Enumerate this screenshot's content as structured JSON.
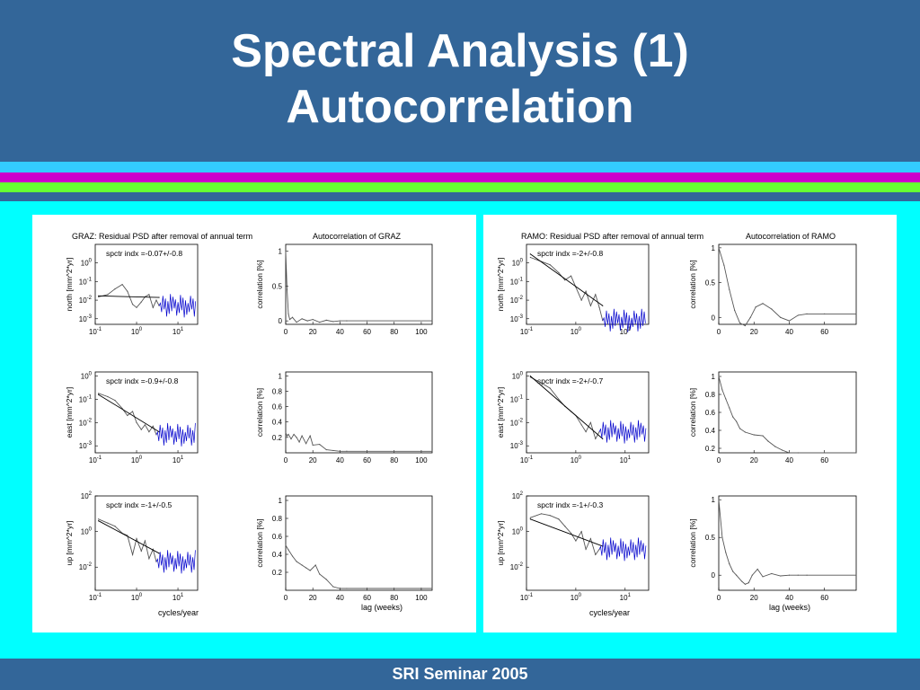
{
  "slide": {
    "title_line1": "Spectral Analysis (1)",
    "title_line2": "Autocorrelation",
    "footer": "SRI Seminar 2005",
    "colors": {
      "header": "#336699",
      "background": "#00ffff",
      "stripe_cyan": "#33ccff",
      "stripe_magenta": "#cc00cc",
      "stripe_green": "#66ff33",
      "stripe_blue": "#336699",
      "psd_noise": "#0000cc"
    }
  },
  "panels": [
    {
      "station": "GRAZ",
      "psd_title": "GRAZ:  Residual PSD after removal of annual term",
      "acf_title": "Autocorrelation of GRAZ",
      "psd_xlabel": "cycles/year",
      "acf_xlabel": "lag (weeks)"
    },
    {
      "station": "RAMO",
      "psd_title": "RAMO:  Residual PSD after removal of annual term",
      "acf_title": "Autocorrelation of RAMO",
      "psd_xlabel": "cycles/year",
      "acf_xlabel": "lag (weeks)"
    }
  ],
  "chart_data": [
    {
      "type": "line",
      "station": "GRAZ",
      "component": "north",
      "title": "GRAZ:  Residual PSD after removal of annual term",
      "ylabel": "north [mm^2*yr]",
      "xlabel": "",
      "annotation": "spctr indx =-0.07+/-0.8",
      "xscale": "log",
      "yscale": "log",
      "xlim": [
        0.1,
        30
      ],
      "ylim": [
        0.0005,
        10
      ],
      "xticks": [
        0.1,
        1,
        10
      ],
      "yticks": [
        0.001,
        0.01,
        0.1,
        1
      ],
      "series": [
        {
          "style": "psd",
          "x": [
            0.12,
            0.2,
            0.3,
            0.45,
            0.6,
            0.8,
            1,
            1.3,
            1.6,
            2,
            2.5,
            3,
            3.5
          ],
          "y": [
            0.015,
            0.02,
            0.04,
            0.07,
            0.03,
            0.006,
            0.004,
            0.008,
            0.015,
            0.02,
            0.004,
            0.01,
            0.005
          ]
        },
        {
          "style": "fit",
          "x": [
            0.12,
            3.5
          ],
          "y": [
            0.017,
            0.014
          ]
        }
      ]
    },
    {
      "type": "line",
      "station": "GRAZ",
      "component": "north",
      "title": "Autocorrelation of GRAZ",
      "ylabel": "correlation [%]",
      "xlabel": "",
      "xlim": [
        0,
        108
      ],
      "ylim": [
        -0.05,
        1.1
      ],
      "xticks": [
        0,
        20,
        40,
        60,
        80,
        100
      ],
      "yticks": [
        0,
        0.5,
        1
      ],
      "series": [
        {
          "x": [
            0,
            1,
            2,
            3,
            5,
            8,
            12,
            16,
            20,
            25,
            30,
            35,
            40,
            45,
            60,
            108
          ],
          "y": [
            1,
            0.45,
            0.1,
            0.02,
            0.05,
            -0.02,
            0.03,
            0.0,
            0.02,
            -0.02,
            0.01,
            -0.01,
            0.0,
            0.0,
            0.0,
            0.0
          ]
        }
      ]
    },
    {
      "type": "line",
      "station": "GRAZ",
      "component": "east",
      "title": "",
      "ylabel": "east [mm^2*yr]",
      "xlabel": "",
      "annotation": "spctr indx =-0.9+/-0.8",
      "xscale": "log",
      "yscale": "log",
      "xlim": [
        0.1,
        30
      ],
      "ylim": [
        0.0005,
        1.5
      ],
      "xticks": [
        0.1,
        1,
        10
      ],
      "yticks": [
        0.001,
        0.01,
        0.1,
        1
      ],
      "series": [
        {
          "style": "psd",
          "x": [
            0.12,
            0.2,
            0.3,
            0.45,
            0.6,
            0.8,
            1,
            1.3,
            1.6,
            2,
            2.5,
            3
          ],
          "y": [
            0.18,
            0.13,
            0.09,
            0.04,
            0.02,
            0.03,
            0.01,
            0.005,
            0.008,
            0.004,
            0.007,
            0.003
          ]
        },
        {
          "style": "fit",
          "x": [
            0.12,
            3.5
          ],
          "y": [
            0.16,
            0.004
          ]
        }
      ]
    },
    {
      "type": "line",
      "station": "GRAZ",
      "component": "east",
      "title": "",
      "ylabel": "correlation [%]",
      "xlabel": "",
      "xlim": [
        0,
        108
      ],
      "ylim": [
        0,
        1.05
      ],
      "xticks": [
        0,
        20,
        40,
        60,
        80,
        100
      ],
      "yticks": [
        0.2,
        0.4,
        0.6,
        0.8,
        1
      ],
      "series": [
        {
          "x": [
            0,
            1,
            2,
            4,
            6,
            8,
            10,
            12,
            15,
            18,
            20,
            25,
            30,
            35,
            40,
            45,
            60,
            108
          ],
          "y": [
            0.26,
            0.22,
            0.24,
            0.18,
            0.24,
            0.2,
            0.14,
            0.22,
            0.12,
            0.22,
            0.1,
            0.11,
            0.04,
            0.03,
            0.02,
            0.02,
            0.02,
            0.02
          ]
        }
      ]
    },
    {
      "type": "line",
      "station": "GRAZ",
      "component": "up",
      "title": "",
      "ylabel": "up [mm^2*yr]",
      "xlabel": "cycles/year",
      "annotation": "spctr indx =-1+/-0.5",
      "xscale": "log",
      "yscale": "log",
      "xlim": [
        0.1,
        30
      ],
      "ylim": [
        0.0005,
        100
      ],
      "xticks": [
        0.1,
        1,
        10
      ],
      "yticks": [
        0.01,
        1,
        100
      ],
      "series": [
        {
          "style": "psd",
          "x": [
            0.12,
            0.2,
            0.3,
            0.45,
            0.6,
            0.8,
            1,
            1.3,
            1.6,
            2,
            2.5,
            3
          ],
          "y": [
            5,
            3,
            2,
            0.8,
            0.6,
            0.05,
            0.4,
            0.08,
            0.3,
            0.03,
            0.1,
            0.02
          ]
        },
        {
          "style": "fit",
          "x": [
            0.12,
            3.5
          ],
          "y": [
            4,
            0.06
          ]
        }
      ]
    },
    {
      "type": "line",
      "station": "GRAZ",
      "component": "up",
      "title": "",
      "ylabel": "correlation [%]",
      "xlabel": "lag (weeks)",
      "xlim": [
        0,
        108
      ],
      "ylim": [
        0,
        1.05
      ],
      "xticks": [
        0,
        20,
        40,
        60,
        80,
        100
      ],
      "yticks": [
        0.2,
        0.4,
        0.6,
        0.8,
        1
      ],
      "series": [
        {
          "x": [
            0,
            2,
            5,
            8,
            12,
            15,
            18,
            22,
            25,
            30,
            35,
            40,
            45,
            60,
            108
          ],
          "y": [
            0.5,
            0.45,
            0.38,
            0.32,
            0.28,
            0.25,
            0.22,
            0.28,
            0.18,
            0.12,
            0.04,
            0.02,
            0.02,
            0.02,
            0.02
          ]
        }
      ]
    },
    {
      "type": "line",
      "station": "RAMO",
      "component": "north",
      "title": "RAMO:  Residual PSD after removal of annual term",
      "ylabel": "north [mm^2*yr]",
      "xlabel": "",
      "annotation": "spctr indx =-2+/-0.8",
      "xscale": "log",
      "yscale": "log",
      "xlim": [
        0.1,
        30
      ],
      "ylim": [
        0.0005,
        10
      ],
      "xticks": [
        0.1,
        1,
        10
      ],
      "yticks": [
        0.001,
        0.01,
        0.1,
        1
      ],
      "series": [
        {
          "style": "psd",
          "x": [
            0.12,
            0.2,
            0.3,
            0.45,
            0.6,
            0.8,
            1,
            1.3,
            1.6,
            2,
            2.5,
            3,
            3.5
          ],
          "y": [
            2,
            1.2,
            0.8,
            0.3,
            0.12,
            0.2,
            0.05,
            0.01,
            0.03,
            0.005,
            0.02,
            0.004,
            0.0008
          ]
        },
        {
          "style": "fit",
          "x": [
            0.12,
            3.5
          ],
          "y": [
            3,
            0.005
          ]
        }
      ]
    },
    {
      "type": "line",
      "station": "RAMO",
      "component": "north",
      "title": "Autocorrelation of RAMO",
      "ylabel": "correlation [%]",
      "xlabel": "",
      "xlim": [
        0,
        78
      ],
      "ylim": [
        -0.1,
        1.05
      ],
      "xticks": [
        0,
        20,
        40,
        60
      ],
      "yticks": [
        0,
        0.5,
        1
      ],
      "series": [
        {
          "x": [
            0,
            3,
            6,
            9,
            12,
            15,
            18,
            21,
            25,
            30,
            35,
            40,
            45,
            50,
            60,
            78
          ],
          "y": [
            1,
            0.75,
            0.4,
            0.1,
            -0.08,
            -0.12,
            0.0,
            0.15,
            0.2,
            0.12,
            0.0,
            -0.05,
            0.03,
            0.05,
            0.05,
            0.05
          ]
        }
      ]
    },
    {
      "type": "line",
      "station": "RAMO",
      "component": "east",
      "title": "",
      "ylabel": "east [mm^2*yr]",
      "xlabel": "",
      "annotation": "spctr indx =-2+/-0.7",
      "xscale": "log",
      "yscale": "log",
      "xlim": [
        0.1,
        30
      ],
      "ylim": [
        0.0005,
        1.5
      ],
      "xticks": [
        0.1,
        1,
        10
      ],
      "yticks": [
        0.001,
        0.01,
        0.1,
        1
      ],
      "series": [
        {
          "style": "psd",
          "x": [
            0.12,
            0.2,
            0.3,
            0.45,
            0.6,
            0.8,
            1,
            1.3,
            1.6,
            2,
            2.5,
            3
          ],
          "y": [
            0.9,
            0.5,
            0.3,
            0.1,
            0.05,
            0.03,
            0.02,
            0.008,
            0.004,
            0.01,
            0.002,
            0.004
          ]
        },
        {
          "style": "fit",
          "x": [
            0.12,
            3.5
          ],
          "y": [
            1.0,
            0.002
          ]
        }
      ]
    },
    {
      "type": "line",
      "station": "RAMO",
      "component": "east",
      "title": "",
      "ylabel": "correlation [%]",
      "xlabel": "",
      "xlim": [
        0,
        78
      ],
      "ylim": [
        0.15,
        1.05
      ],
      "xticks": [
        0,
        20,
        40,
        60
      ],
      "yticks": [
        0.2,
        0.4,
        0.6,
        0.8,
        1
      ],
      "series": [
        {
          "x": [
            0,
            2,
            4,
            6,
            8,
            10,
            12,
            15,
            20,
            25,
            28,
            32,
            36,
            40,
            45,
            78
          ],
          "y": [
            1,
            0.85,
            0.75,
            0.65,
            0.55,
            0.5,
            0.42,
            0.38,
            0.35,
            0.34,
            0.28,
            0.22,
            0.18,
            0.15,
            0.15,
            0.15
          ]
        }
      ]
    },
    {
      "type": "line",
      "station": "RAMO",
      "component": "up",
      "title": "",
      "ylabel": "up [mm^2*yr]",
      "xlabel": "cycles/year",
      "annotation": "spctr indx =-1+/-0.3",
      "xscale": "log",
      "yscale": "log",
      "xlim": [
        0.1,
        30
      ],
      "ylim": [
        0.0005,
        100
      ],
      "xticks": [
        0.1,
        1,
        10
      ],
      "yticks": [
        0.01,
        1,
        100
      ],
      "series": [
        {
          "style": "psd",
          "x": [
            0.12,
            0.2,
            0.3,
            0.45,
            0.6,
            0.8,
            1,
            1.3,
            1.6,
            2,
            2.5,
            3
          ],
          "y": [
            6,
            10,
            8,
            5,
            2,
            0.8,
            0.3,
            1,
            0.1,
            0.4,
            0.05,
            0.1
          ]
        },
        {
          "style": "fit",
          "x": [
            0.12,
            3.5
          ],
          "y": [
            5,
            0.15
          ]
        }
      ]
    },
    {
      "type": "line",
      "station": "RAMO",
      "component": "up",
      "title": "",
      "ylabel": "correlation [%]",
      "xlabel": "lag (weeks)",
      "xlim": [
        0,
        78
      ],
      "ylim": [
        -0.2,
        1.05
      ],
      "xticks": [
        0,
        20,
        40,
        60
      ],
      "yticks": [
        0,
        0.5,
        1
      ],
      "series": [
        {
          "x": [
            0,
            2,
            4,
            6,
            8,
            10,
            13,
            15,
            17,
            19,
            22,
            25,
            30,
            35,
            40,
            45,
            50,
            78
          ],
          "y": [
            1,
            0.5,
            0.3,
            0.15,
            0.05,
            0.0,
            -0.08,
            -0.12,
            -0.1,
            0.0,
            0.08,
            -0.02,
            0.02,
            -0.01,
            0.0,
            0.0,
            0.0,
            0.0
          ]
        }
      ]
    }
  ]
}
